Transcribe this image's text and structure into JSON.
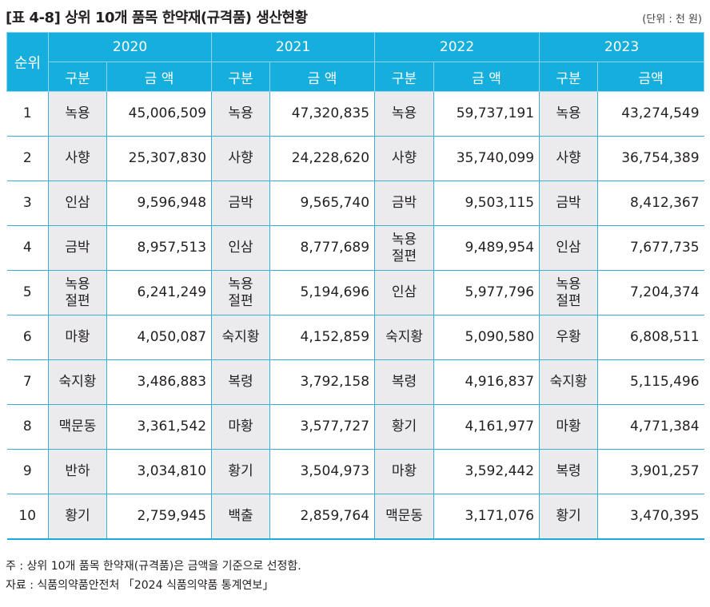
{
  "title": "[표 4-8] 상위 10개 품목 한약재(규격품) 생산현황",
  "unit": "(단위 : 천 원)",
  "header": {
    "rank": "순위",
    "years": [
      "2020",
      "2021",
      "2022",
      "2023"
    ],
    "category": "구분",
    "amount": [
      "금 액",
      "금 액",
      "금 액",
      "금액"
    ]
  },
  "rows": [
    {
      "rank": "1",
      "cells": [
        [
          "녹용",
          "45,006,509"
        ],
        [
          "녹용",
          "47,320,835"
        ],
        [
          "녹용",
          "59,737,191"
        ],
        [
          "녹용",
          "43,274,549"
        ]
      ]
    },
    {
      "rank": "2",
      "cells": [
        [
          "사향",
          "25,307,830"
        ],
        [
          "사향",
          "24,228,620"
        ],
        [
          "사향",
          "35,740,099"
        ],
        [
          "사향",
          "36,754,389"
        ]
      ]
    },
    {
      "rank": "3",
      "cells": [
        [
          "인삼",
          "9,596,948"
        ],
        [
          "금박",
          "9,565,740"
        ],
        [
          "금박",
          "9,503,115"
        ],
        [
          "금박",
          "8,412,367"
        ]
      ]
    },
    {
      "rank": "4",
      "cells": [
        [
          "금박",
          "8,957,513"
        ],
        [
          "인삼",
          "8,777,689"
        ],
        [
          "녹용\n절편",
          "9,489,954"
        ],
        [
          "인삼",
          "7,677,735"
        ]
      ]
    },
    {
      "rank": "5",
      "cells": [
        [
          "녹용\n절편",
          "6,241,249"
        ],
        [
          "녹용\n절편",
          "5,194,696"
        ],
        [
          "인삼",
          "5,977,796"
        ],
        [
          "녹용\n절편",
          "7,204,374"
        ]
      ]
    },
    {
      "rank": "6",
      "cells": [
        [
          "마황",
          "4,050,087"
        ],
        [
          "숙지황",
          "4,152,859"
        ],
        [
          "숙지황",
          "5,090,580"
        ],
        [
          "우황",
          "6,808,511"
        ]
      ]
    },
    {
      "rank": "7",
      "cells": [
        [
          "숙지황",
          "3,486,883"
        ],
        [
          "복령",
          "3,792,158"
        ],
        [
          "복령",
          "4,916,837"
        ],
        [
          "숙지황",
          "5,115,496"
        ]
      ]
    },
    {
      "rank": "8",
      "cells": [
        [
          "맥문동",
          "3,361,542"
        ],
        [
          "마황",
          "3,577,727"
        ],
        [
          "황기",
          "4,161,977"
        ],
        [
          "마황",
          "4,771,384"
        ]
      ]
    },
    {
      "rank": "9",
      "cells": [
        [
          "반하",
          "3,034,810"
        ],
        [
          "황기",
          "3,504,973"
        ],
        [
          "마황",
          "3,592,442"
        ],
        [
          "복령",
          "3,901,257"
        ]
      ]
    },
    {
      "rank": "10",
      "cells": [
        [
          "황기",
          "2,759,945"
        ],
        [
          "백출",
          "2,859,764"
        ],
        [
          "맥문동",
          "3,171,076"
        ],
        [
          "황기",
          "3,470,395"
        ]
      ]
    }
  ],
  "notes": [
    "주 : 상위 10개 품목 한약재(규격품)은 금액을 기준으로 선정함.",
    "자료 : 식품의약품안전처 「2024 식품의약품 통계연보」"
  ],
  "colors": {
    "header": "#15aedd",
    "category_cell": "#ebebee",
    "rule": "#3aaedb"
  }
}
